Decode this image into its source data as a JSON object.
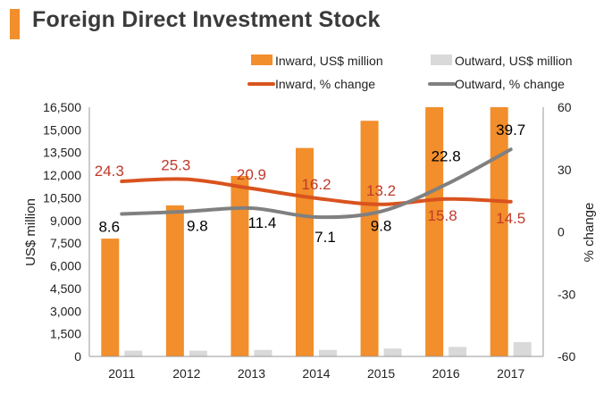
{
  "page": {
    "title": "Foreign Direct Investment Stock"
  },
  "colors": {
    "inward_bar": "#f28e2b",
    "outward_bar": "#d9d9d9",
    "inward_line": "#d9531e",
    "outward_line": "#808080",
    "inward_label": "#c0392b",
    "outward_label": "#000000",
    "title_accent": "#f28e2b"
  },
  "chart_data": {
    "type": "bar",
    "title": "Foreign Direct Investment Stock",
    "categories": [
      "2011",
      "2012",
      "2013",
      "2014",
      "2015",
      "2016",
      "2017"
    ],
    "series": [
      {
        "name": "Inward, US$ million",
        "kind": "bar",
        "axis": "left",
        "values": [
          7800,
          10000,
          11950,
          13800,
          15600,
          17000,
          17000
        ]
      },
      {
        "name": "Outward, US$ million",
        "kind": "bar",
        "axis": "left",
        "values": [
          380,
          380,
          430,
          430,
          520,
          630,
          950
        ]
      },
      {
        "name": "Inward, % change",
        "kind": "line",
        "axis": "right",
        "values": [
          24.3,
          25.3,
          20.9,
          16.2,
          13.2,
          15.8,
          14.5
        ],
        "labels": [
          "24.3",
          "25.3",
          "20.9",
          "16.2",
          "13.2",
          "15.8",
          "14.5"
        ]
      },
      {
        "name": "Outward, % change",
        "kind": "line",
        "axis": "right",
        "values": [
          8.6,
          9.8,
          11.4,
          7.1,
          9.8,
          22.8,
          39.7
        ],
        "labels": [
          "8.6",
          "9.8",
          "11.4",
          "7.1",
          "9.8",
          "22.8",
          "39.7"
        ]
      }
    ],
    "ylabel": "US$ million",
    "y2label": "% change",
    "ylim": [
      0,
      16500
    ],
    "y2lim": [
      -60,
      60
    ],
    "yticks": [
      "0",
      "1,500",
      "3,000",
      "4,500",
      "6,000",
      "7,500",
      "9,000",
      "10,500",
      "12,000",
      "13,500",
      "15,000",
      "16,500"
    ],
    "y2ticks": [
      "-60",
      "-30",
      "0",
      "30",
      "60"
    ],
    "grid": false,
    "legend_position": "top"
  }
}
